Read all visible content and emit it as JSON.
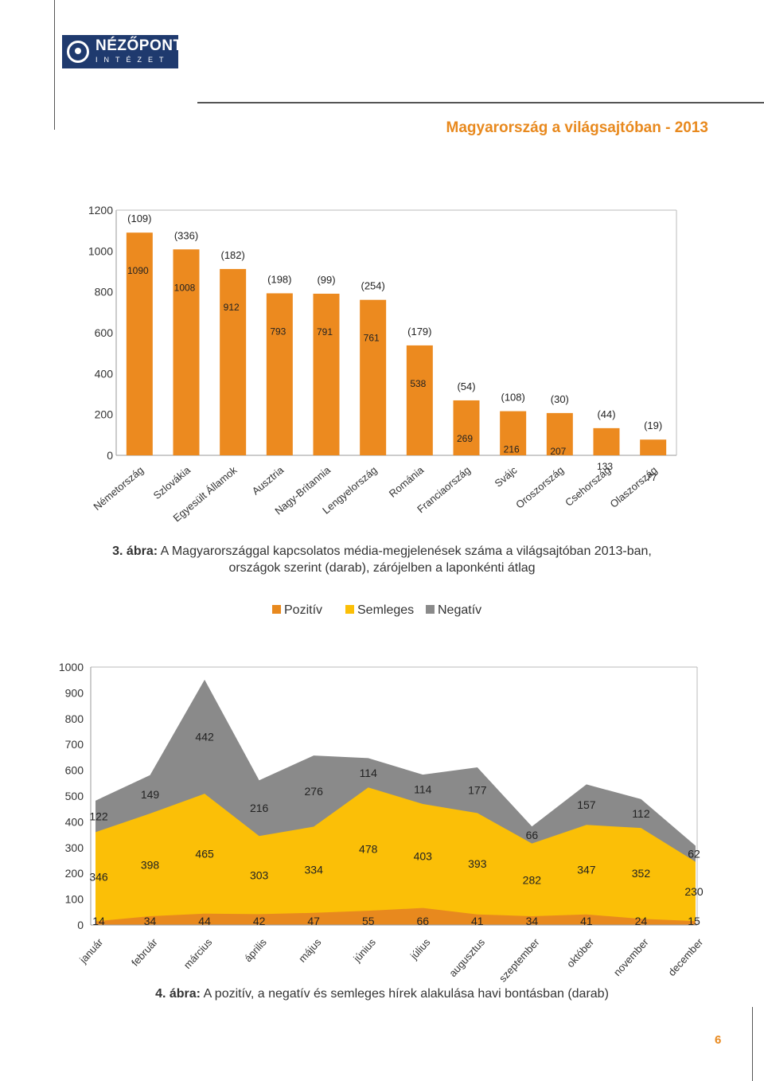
{
  "header": {
    "logo_name": "NÉZŐPONT",
    "logo_sub": "INTÉZET",
    "title": "Magyarország a világsajtóban - 2013"
  },
  "figure3": {
    "caption_label": "3. ábra:",
    "caption_line1": "A Magyarországgal kapcsolatos média-megjelenések száma a világsajtóban 2013-ban,",
    "caption_line2": "országok szerint (darab), zárójelben a laponkénti átlag"
  },
  "figure4": {
    "caption_label": "4. ábra:",
    "caption_text": "A pozitív, a negatív és semleges hírek alakulása havi bontásban (darab)"
  },
  "page_number": "6",
  "colors": {
    "accent": "#e8891e",
    "bar": "#ec8a1f",
    "pozitiv": "#e8891e",
    "semleges": "#fbbf07",
    "negativ": "#8a8a8a",
    "logo": "#1f3a6e"
  },
  "chart_data": [
    {
      "type": "bar",
      "categories": [
        "Németország",
        "Szlovákia",
        "Egyesült Államok",
        "Ausztria",
        "Nagy-Britannia",
        "Lengyelország",
        "Románia",
        "Franciaország",
        "Svájc",
        "Oroszország",
        "Csehország",
        "Olaszország"
      ],
      "values": [
        1090,
        1008,
        912,
        793,
        791,
        761,
        538,
        269,
        216,
        207,
        133,
        77
      ],
      "averages": [
        "(109)",
        "(336)",
        "(182)",
        "(198)",
        "(99)",
        "(254)",
        "(179)",
        "(54)",
        "(108)",
        "(30)",
        "(44)",
        "(19)"
      ],
      "y_ticks": [
        "0",
        "200",
        "400",
        "600",
        "800",
        "1000",
        "1200"
      ],
      "ylim": [
        0,
        1200
      ],
      "grid": false,
      "title": "",
      "xlabel": "",
      "ylabel": ""
    },
    {
      "type": "area",
      "stacked": true,
      "categories": [
        "január",
        "február",
        "március",
        "április",
        "május",
        "június",
        "július",
        "augusztus",
        "szeptember",
        "október",
        "november",
        "december"
      ],
      "series": [
        {
          "name": "Pozitív",
          "values": [
            14,
            34,
            44,
            42,
            47,
            55,
            66,
            41,
            34,
            41,
            24,
            15
          ]
        },
        {
          "name": "Semleges",
          "values": [
            346,
            398,
            465,
            303,
            334,
            478,
            403,
            393,
            282,
            347,
            352,
            230
          ]
        },
        {
          "name": "Negatív",
          "values": [
            122,
            149,
            442,
            216,
            276,
            114,
            114,
            177,
            66,
            157,
            112,
            62
          ]
        }
      ],
      "y_ticks": [
        "0",
        "100",
        "200",
        "300",
        "400",
        "500",
        "600",
        "700",
        "800",
        "900",
        "1000"
      ],
      "ylim": [
        0,
        1000
      ],
      "legend": "top",
      "grid": false,
      "title": "",
      "xlabel": "",
      "ylabel": ""
    }
  ]
}
